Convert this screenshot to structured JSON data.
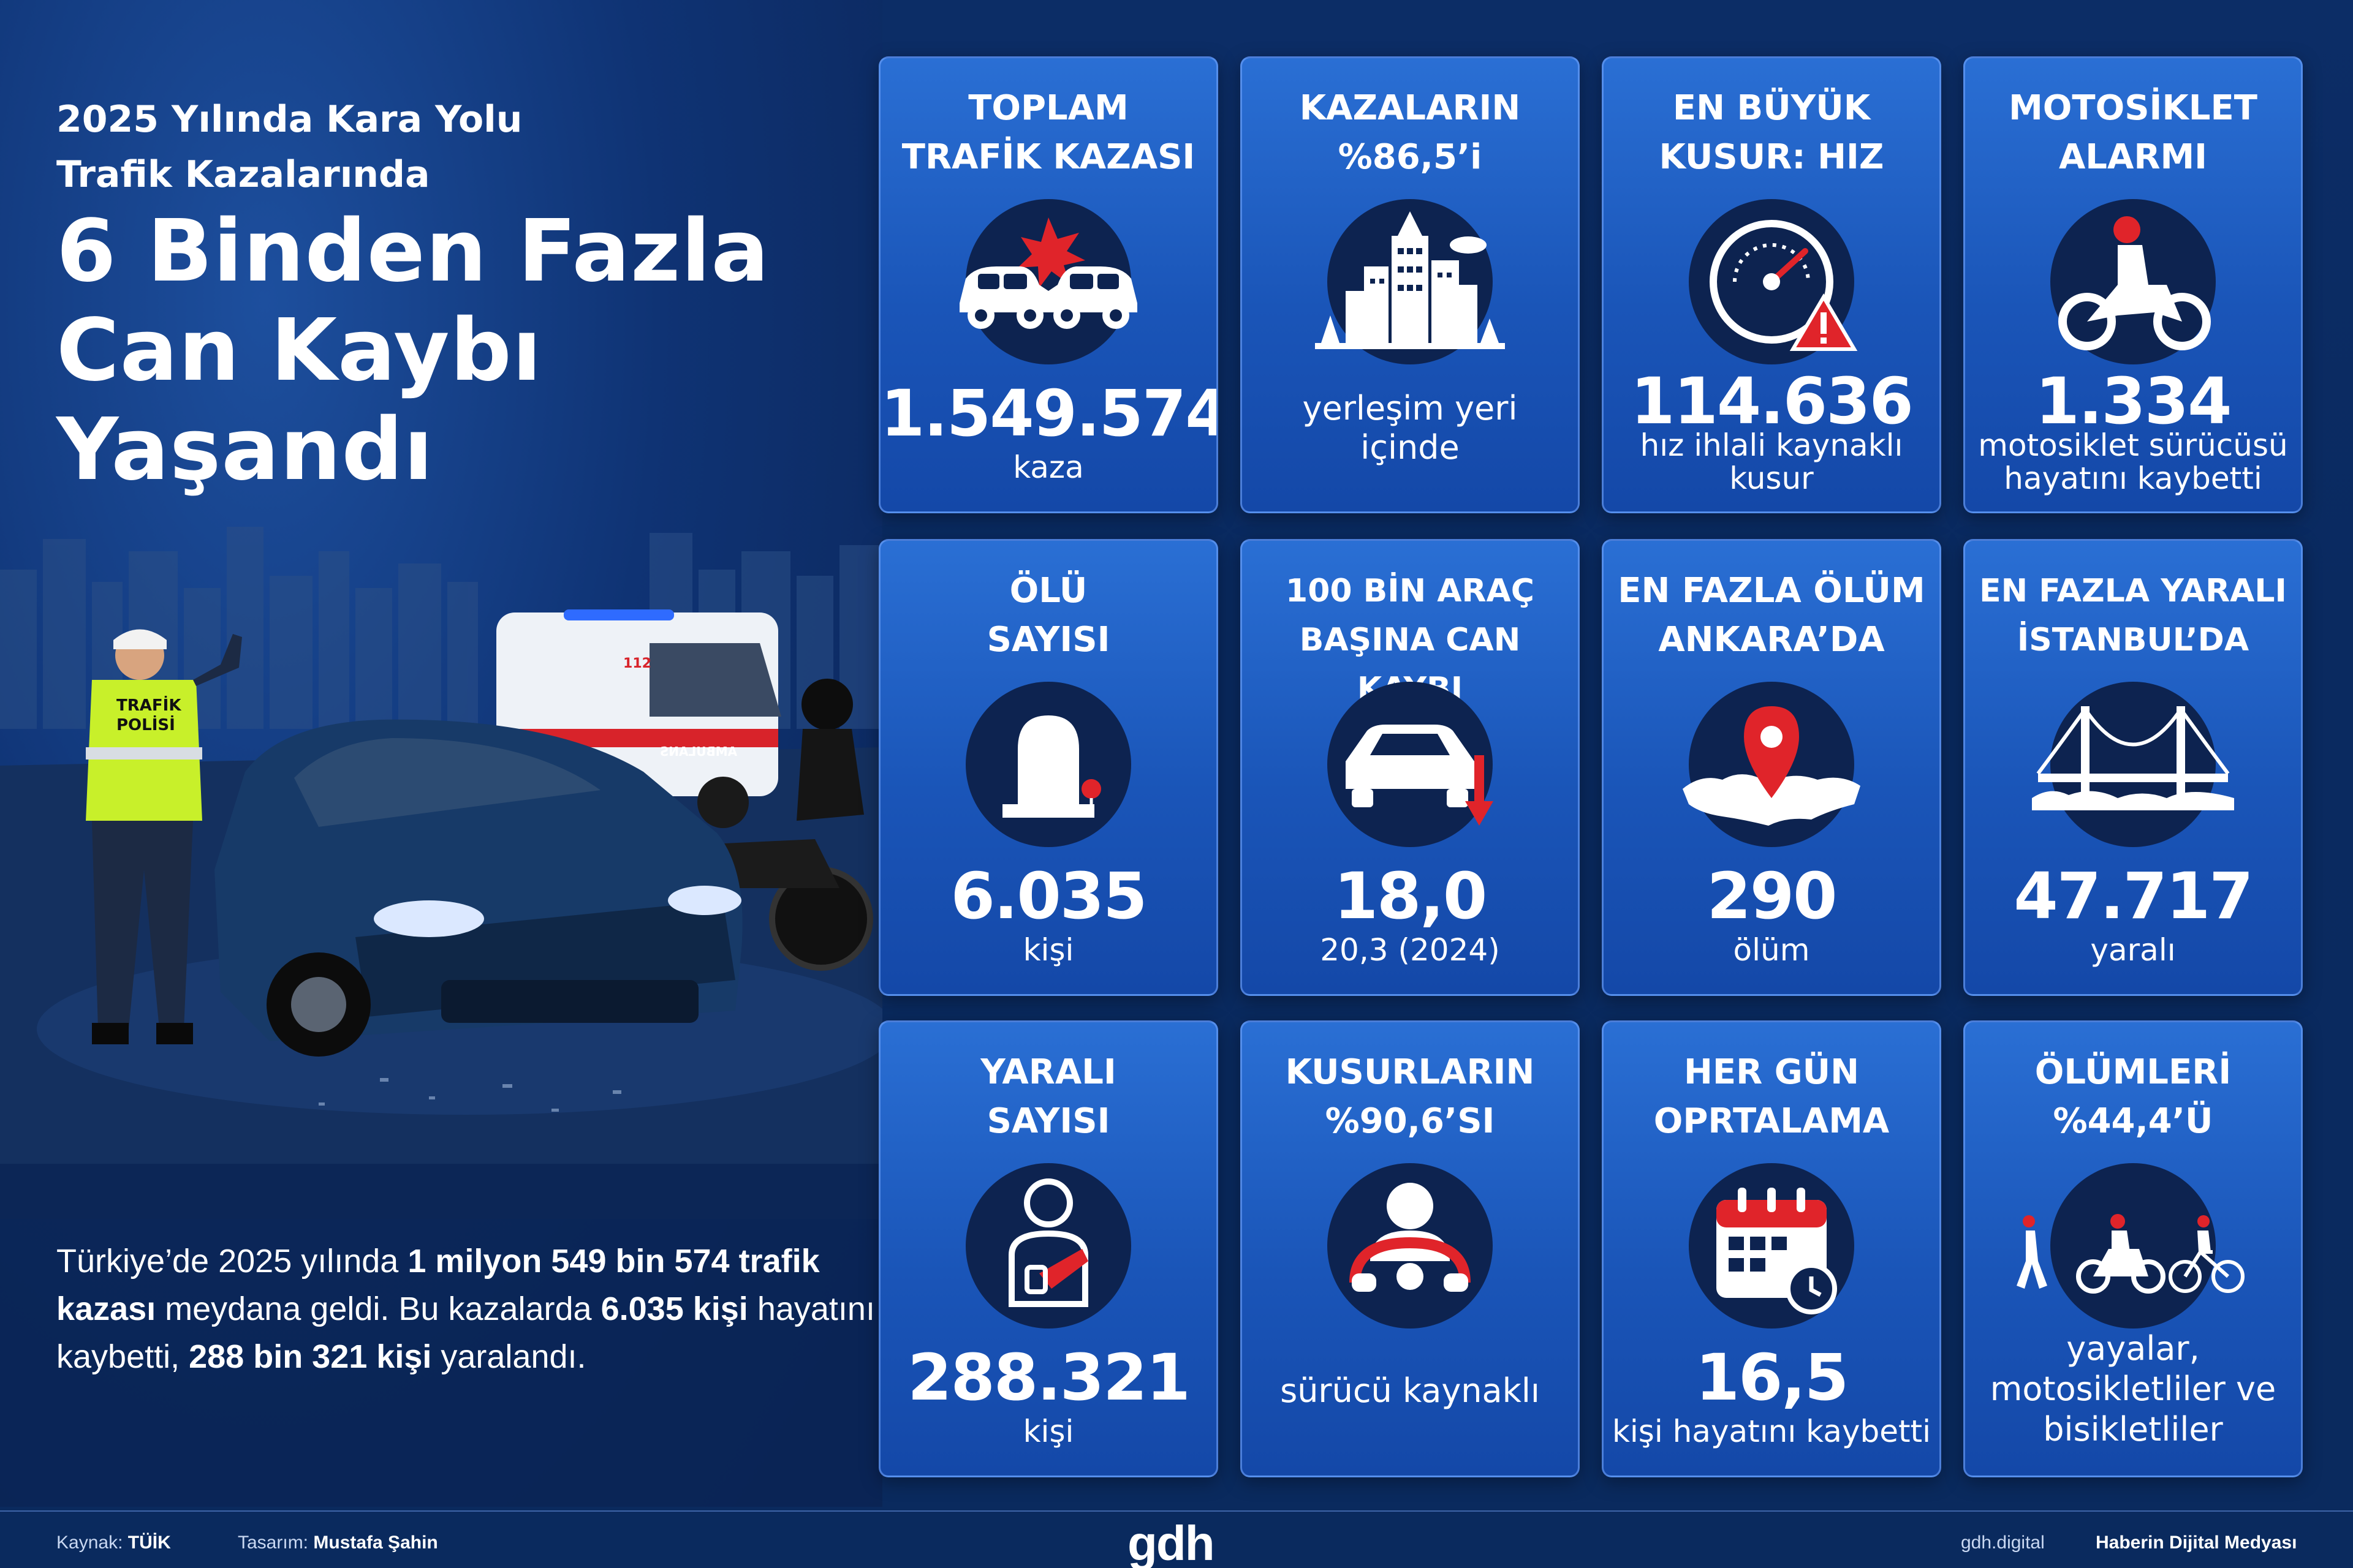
{
  "header": {
    "subtitle_line1": "2025 Yılında Kara Yolu",
    "subtitle_line2": "Trafik Kazalarında",
    "headline_line1": "6 Binden Fazla",
    "headline_line2": "Can Kaybı",
    "headline_line3": "Yaşandı"
  },
  "scene": {
    "police_vest_line1": "TRAFİK",
    "police_vest_line2": "POLİSİ",
    "ambulance_plate": "112",
    "ambulance_side": "AMBULANS"
  },
  "summary": {
    "p1": "Türkiye’de 2025 yılında ",
    "b1": "1 milyon 549 bin 574 trafik kazası",
    "p2": " meydana geldi. Bu kazalarda ",
    "b2": "6.035 kişi",
    "p3": " hayatını kaybetti, ",
    "b3": "288 bin 321 kişi",
    "p4": " yaralandı."
  },
  "cards": [
    {
      "title1": "TOPLAM",
      "title2": "TRAFİK KAZASI",
      "value": "1.549.574",
      "unit": "kaza",
      "icon": "car-crash-icon"
    },
    {
      "title1": "KAZALARIN",
      "title2": "%86,5’i",
      "desc1": "yerleşim yeri",
      "desc2": "içinde",
      "icon": "city-icon"
    },
    {
      "title1": "EN BÜYÜK",
      "title2": "KUSUR: HIZ",
      "value": "114.636",
      "unit1": "hız ihlali kaynaklı",
      "unit2": "kusur",
      "icon": "speedometer-warning-icon"
    },
    {
      "title1": "MOTOSİKLET",
      "title2": "ALARMI",
      "value": "1.334",
      "unit1": "motosiklet sürücüsü",
      "unit2": "hayatını kaybetti",
      "icon": "motorcycle-rider-icon"
    },
    {
      "title1": "ÖLÜ",
      "title2": "SAYISI",
      "value": "6.035",
      "unit": "kişi",
      "icon": "tombstone-icon"
    },
    {
      "title1": "100 BİN ARAÇ",
      "title2": "BAŞINA CAN KAYBI",
      "value": "18,0",
      "unit": "20,3 (2024)",
      "icon": "car-down-arrow-icon"
    },
    {
      "title1": "EN FAZLA ÖLÜM",
      "title2": "ANKARA’DA",
      "value": "290",
      "unit": "ölüm",
      "icon": "map-pin-icon"
    },
    {
      "title1": "EN FAZLA YARALI",
      "title2": "İSTANBUL’DA",
      "value": "47.717",
      "unit": "yaralı",
      "icon": "bridge-icon"
    },
    {
      "title1": "YARALI",
      "title2": "SAYISI",
      "value": "288.321",
      "unit": "kişi",
      "icon": "injured-person-icon"
    },
    {
      "title1": "KUSURLARIN",
      "title2": "%90,6’SI",
      "desc1": "sürücü kaynaklı",
      "icon": "driver-steering-icon"
    },
    {
      "title1": "HER GÜN",
      "title2": "OPRTALAMA",
      "value": "16,5",
      "unit": "kişi hayatını kaybetti",
      "icon": "calendar-clock-icon"
    },
    {
      "title1": "ÖLÜMLERİ",
      "title2": "%44,4’Ü",
      "desc1": "yayalar,",
      "desc2": "motosikletliler ve",
      "desc3": "bisikletliler",
      "icon": "road-users-icon"
    }
  ],
  "footer": {
    "source_label": "Kaynak:",
    "source_value": "TÜİK",
    "design_label": "Tasarım:",
    "design_value": "Mustafa Şahin",
    "logo": "gdh",
    "website": "gdh.digital",
    "slogan": "Haberin Dijital Medyası"
  },
  "colors": {
    "accent_red": "#e0242a",
    "card_blue": "#1f5fc8",
    "dark_circle": "#0d2350",
    "background": "#0b2a63"
  }
}
